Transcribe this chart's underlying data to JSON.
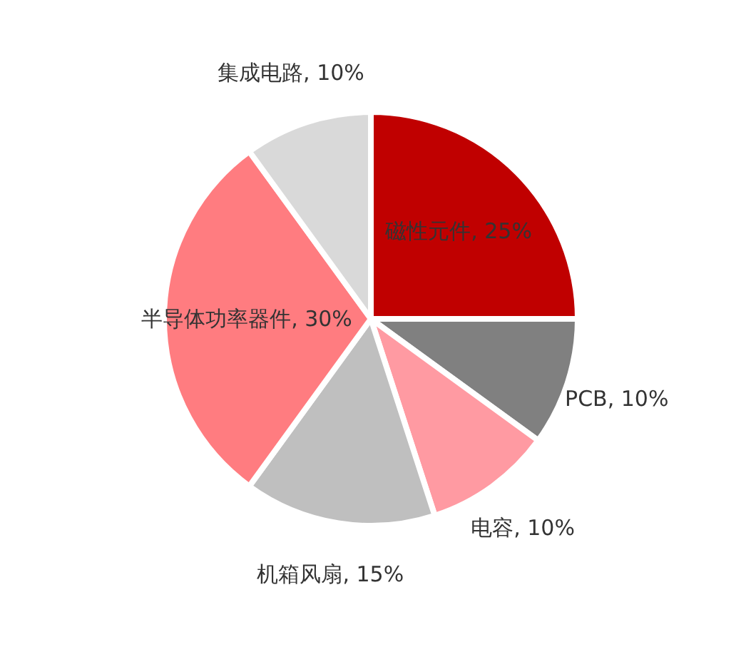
{
  "chart_data": {
    "type": "pie",
    "categories": [
      "磁性元件",
      "PCB",
      "电容",
      "机箱风扇",
      "半导体功率器件",
      "集成电路"
    ],
    "values": [
      25,
      10,
      10,
      15,
      30,
      10
    ],
    "value_labels": [
      "25%",
      "10%",
      "10%",
      "15%",
      "30%",
      "10%"
    ],
    "colors": [
      "#c00000",
      "#808080",
      "#ff9aa2",
      "#bfbfbf",
      "#ff7c80",
      "#d9d9d9"
    ],
    "legend": false
  }
}
